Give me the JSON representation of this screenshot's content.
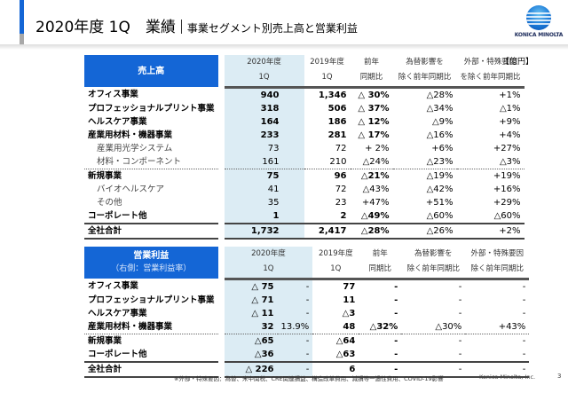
{
  "header": {
    "title_main": "2020年度 1Q　業績",
    "title_sub": "事業セグメント別売上高と営業利益",
    "logo_text": "KONICA MINOLTA",
    "accent_color": "#1466d6"
  },
  "unit_label": "【億円】",
  "columns": {
    "fy2020": "2020年度",
    "fy2019": "2019年度",
    "quarter": "1Q",
    "yoy_1": "前年",
    "yoy_2": "同期比",
    "fx_1": "為替影響を",
    "fx_2": "除く前年同期比",
    "ex_1": "外部・特殊要因",
    "ex_2": "を除く前年同期比",
    "ex_2b": "除く前年同期比"
  },
  "sales": {
    "heading": "売上高",
    "rows": [
      {
        "name": "オフィス事業",
        "fy2020": "940",
        "fy2019": "1,346",
        "yoy": "△ 30%",
        "fx": "△28%",
        "ex": "+1%",
        "level": "main"
      },
      {
        "name": "プロフェッショナルプリント事業",
        "fy2020": "318",
        "fy2019": "506",
        "yoy": "△ 37%",
        "fx": "△34%",
        "ex": "△1%",
        "level": "main"
      },
      {
        "name": "ヘルスケア事業",
        "fy2020": "164",
        "fy2019": "186",
        "yoy": "△ 12%",
        "fx": "△9%",
        "ex": "+9%",
        "level": "main"
      },
      {
        "name": "産業用材料・機器事業",
        "fy2020": "233",
        "fy2019": "281",
        "yoy": "△ 17%",
        "fx": "△16%",
        "ex": "+4%",
        "level": "main"
      },
      {
        "name": "産業用光学システム",
        "fy2020": "73",
        "fy2019": "72",
        "yoy": "+ 2%",
        "fx": "+6%",
        "ex": "+27%",
        "level": "sub"
      },
      {
        "name": "材料・コンポーネント",
        "fy2020": "161",
        "fy2019": "210",
        "yoy": "△24%",
        "fx": "△23%",
        "ex": "△3%",
        "level": "sub"
      },
      {
        "name": "新規事業",
        "fy2020": "75",
        "fy2019": "96",
        "yoy": "△21%",
        "fx": "△19%",
        "ex": "+19%",
        "level": "main"
      },
      {
        "name": "バイオヘルスケア",
        "fy2020": "41",
        "fy2019": "72",
        "yoy": "△43%",
        "fx": "△42%",
        "ex": "+16%",
        "level": "sub"
      },
      {
        "name": "その他",
        "fy2020": "35",
        "fy2019": "23",
        "yoy": "+47%",
        "fx": "+51%",
        "ex": "+29%",
        "level": "sub"
      },
      {
        "name": "コーポレート他",
        "fy2020": "1",
        "fy2019": "2",
        "yoy": "△49%",
        "fx": "△60%",
        "ex": "△60%",
        "level": "main"
      },
      {
        "name": "全社合計",
        "fy2020": "1,732",
        "fy2019": "2,417",
        "yoy": "△28%",
        "fx": "△26%",
        "ex": "+2%",
        "level": "total"
      }
    ]
  },
  "op_income": {
    "heading": "営業利益",
    "subheading": "（右側：営業利益率）",
    "rows": [
      {
        "name": "オフィス事業",
        "fy2020": "△ 75",
        "margin": "-",
        "fy2019": "77",
        "yoy": "-",
        "fx": "-",
        "ex": "-"
      },
      {
        "name": "プロフェッショナルプリント事業",
        "fy2020": "△ 71",
        "margin": "-",
        "fy2019": "11",
        "yoy": "-",
        "fx": "-",
        "ex": "-"
      },
      {
        "name": "ヘルスケア事業",
        "fy2020": "△ 11",
        "margin": "-",
        "fy2019": "△3",
        "yoy": "-",
        "fx": "-",
        "ex": "-"
      },
      {
        "name": "産業用材料・機器事業",
        "fy2020": "32",
        "margin": "13.9%",
        "fy2019": "48",
        "yoy": "△32%",
        "fx": "△30%",
        "ex": "+43%"
      },
      {
        "name": "新規事業",
        "fy2020": "△65",
        "margin": "-",
        "fy2019": "△64",
        "yoy": "-",
        "fx": "-",
        "ex": "-"
      },
      {
        "name": "コーポレート他",
        "fy2020": "△36",
        "margin": "-",
        "fy2019": "△63",
        "yoy": "-",
        "fx": "-",
        "ex": "-"
      },
      {
        "name": "全社合計",
        "fy2020": "△ 226",
        "margin": "-",
        "fy2019": "6",
        "yoy": "-",
        "fx": "-",
        "ex": "-"
      }
    ]
  },
  "footer": {
    "footnote": "※外部・特殊要因：為替、米中関税、CRE関連損益、構造改革費用、減損等一過性費用、COVID-19影響",
    "company": "Konica Minolta, Inc.",
    "page": "3"
  }
}
